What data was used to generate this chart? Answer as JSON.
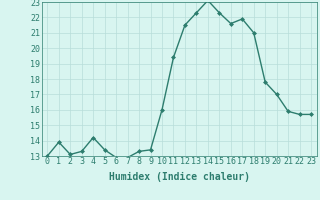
{
  "x": [
    0,
    1,
    2,
    3,
    4,
    5,
    6,
    7,
    8,
    9,
    10,
    11,
    12,
    13,
    14,
    15,
    16,
    17,
    18,
    19,
    20,
    21,
    22,
    23
  ],
  "y": [
    13,
    13.9,
    13.1,
    13.3,
    14.2,
    13.4,
    12.9,
    12.9,
    13.3,
    13.4,
    16.0,
    19.4,
    21.5,
    22.3,
    23.1,
    22.3,
    21.6,
    21.9,
    21.0,
    17.8,
    17.0,
    15.9,
    15.7,
    15.7
  ],
  "line_color": "#2d7d6e",
  "marker": "D",
  "marker_size": 2,
  "line_width": 1.0,
  "bg_color": "#d8f5f0",
  "grid_color": "#b8deda",
  "xlabel": "Humidex (Indice chaleur)",
  "xlabel_fontsize": 7,
  "tick_fontsize": 6,
  "ylim": [
    13,
    23
  ],
  "yticks": [
    13,
    14,
    15,
    16,
    17,
    18,
    19,
    20,
    21,
    22,
    23
  ],
  "xticks": [
    0,
    1,
    2,
    3,
    4,
    5,
    6,
    7,
    8,
    9,
    10,
    11,
    12,
    13,
    14,
    15,
    16,
    17,
    18,
    19,
    20,
    21,
    22,
    23
  ]
}
